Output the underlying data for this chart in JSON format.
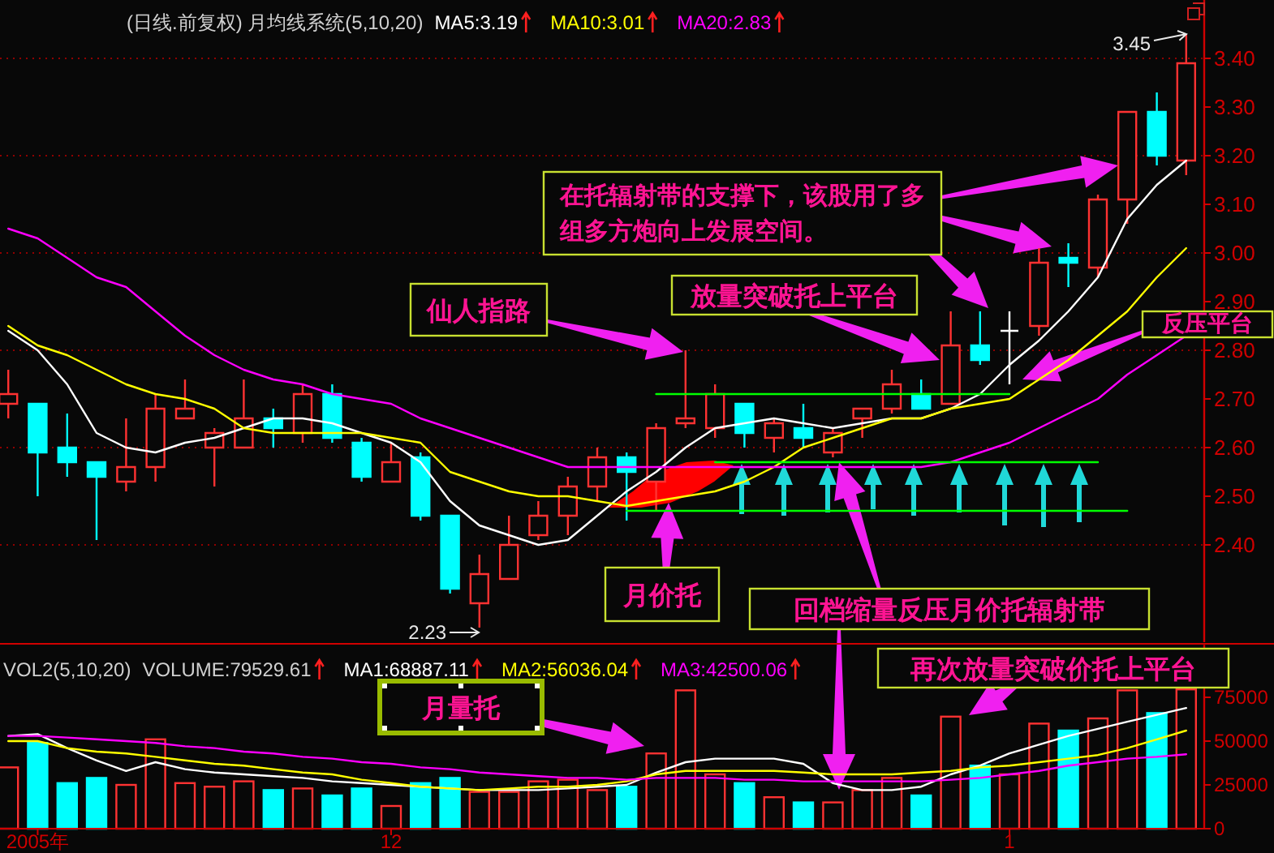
{
  "chart_data": [
    {
      "type": "candlestick",
      "title": "(日线.前复权) 月均线系统(5,10,20)",
      "categories": [
        null,
        null,
        null,
        null,
        null,
        null,
        null,
        null,
        null,
        null,
        null,
        null,
        null,
        null,
        null,
        null,
        null,
        null,
        null,
        null,
        null,
        null,
        null,
        null,
        null,
        null,
        null,
        null,
        null,
        null,
        null,
        null,
        null,
        null,
        null,
        null,
        null,
        null,
        null,
        null,
        null
      ],
      "ohlc": [
        [
          2.69,
          2.76,
          2.66,
          2.71
        ],
        [
          2.69,
          2.69,
          2.5,
          2.59
        ],
        [
          2.6,
          2.67,
          2.54,
          2.57
        ],
        [
          2.57,
          2.57,
          2.41,
          2.54
        ],
        [
          2.53,
          2.66,
          2.51,
          2.56
        ],
        [
          2.56,
          2.71,
          2.53,
          2.68
        ],
        [
          2.66,
          2.74,
          2.66,
          2.68
        ],
        [
          2.6,
          2.64,
          2.52,
          2.63
        ],
        [
          2.6,
          2.74,
          2.6,
          2.66
        ],
        [
          2.66,
          2.68,
          2.6,
          2.64
        ],
        [
          2.63,
          2.73,
          2.61,
          2.71
        ],
        [
          2.71,
          2.73,
          2.61,
          2.62
        ],
        [
          2.61,
          2.62,
          2.53,
          2.54
        ],
        [
          2.53,
          2.61,
          2.53,
          2.57
        ],
        [
          2.58,
          2.59,
          2.45,
          2.46
        ],
        [
          2.46,
          2.46,
          2.3,
          2.31
        ],
        [
          2.28,
          2.38,
          2.23,
          2.34
        ],
        [
          2.33,
          2.46,
          2.33,
          2.4
        ],
        [
          2.42,
          2.49,
          2.41,
          2.46
        ],
        [
          2.46,
          2.54,
          2.42,
          2.52
        ],
        [
          2.52,
          2.6,
          2.49,
          2.58
        ],
        [
          2.58,
          2.59,
          2.45,
          2.55
        ],
        [
          2.53,
          2.65,
          2.47,
          2.64
        ],
        [
          2.65,
          2.8,
          2.64,
          2.66
        ],
        [
          2.64,
          2.73,
          2.62,
          2.71
        ],
        [
          2.69,
          2.69,
          2.6,
          2.63
        ],
        [
          2.62,
          2.66,
          2.59,
          2.65
        ],
        [
          2.64,
          2.69,
          2.6,
          2.62
        ],
        [
          2.59,
          2.64,
          2.58,
          2.63
        ],
        [
          2.66,
          2.68,
          2.62,
          2.68
        ],
        [
          2.68,
          2.76,
          2.67,
          2.73
        ],
        [
          2.71,
          2.74,
          2.68,
          2.68
        ],
        [
          2.69,
          2.88,
          2.69,
          2.81
        ],
        [
          2.81,
          2.88,
          2.77,
          2.78
        ],
        [
          2.84,
          2.88,
          2.73,
          2.84
        ],
        [
          2.85,
          3.01,
          2.83,
          2.98
        ],
        [
          2.99,
          3.02,
          2.93,
          2.98
        ],
        [
          2.97,
          3.12,
          2.95,
          3.11
        ],
        [
          3.11,
          3.29,
          3.06,
          3.29
        ],
        [
          3.29,
          3.33,
          3.18,
          3.2
        ],
        [
          3.19,
          3.45,
          3.16,
          3.39
        ]
      ],
      "colors": [
        "#ff3232",
        "#00ffff",
        "#00ffff",
        "#00ffff",
        "#ff3232",
        "#ff3232",
        "#ff3232",
        "#ff3232",
        "#ff3232",
        "#00ffff",
        "#ff3232",
        "#00ffff",
        "#00ffff",
        "#ff3232",
        "#00ffff",
        "#00ffff",
        "#ff3232",
        "#ff3232",
        "#ff3232",
        "#ff3232",
        "#ff3232",
        "#00ffff",
        "#ff3232",
        "#ff3232",
        "#ff3232",
        "#00ffff",
        "#ff3232",
        "#00ffff",
        "#ff3232",
        "#ff3232",
        "#ff3232",
        "#00ffff",
        "#ff3232",
        "#00ffff",
        "#ffffff",
        "#ff3232",
        "#00ffff",
        "#ff3232",
        "#ff3232",
        "#00ffff",
        "#ff3232"
      ],
      "series": [
        {
          "type": "line",
          "name": "MA5:3.19",
          "color": "#ffffff",
          "values": [
            2.84,
            2.8,
            2.73,
            2.63,
            2.6,
            2.59,
            2.61,
            2.62,
            2.64,
            2.66,
            2.66,
            2.65,
            2.63,
            2.61,
            2.57,
            2.49,
            2.44,
            2.42,
            2.4,
            2.41,
            2.46,
            2.51,
            2.55,
            2.6,
            2.64,
            2.65,
            2.66,
            2.65,
            2.64,
            2.65,
            2.66,
            2.66,
            2.68,
            2.71,
            2.77,
            2.82,
            2.88,
            2.95,
            3.07,
            3.14,
            3.19
          ]
        },
        {
          "type": "line",
          "name": "MA10:3.01",
          "color": "#ffff00",
          "values": [
            2.85,
            2.81,
            2.79,
            2.76,
            2.73,
            2.71,
            2.7,
            2.68,
            2.64,
            2.63,
            2.63,
            2.63,
            2.63,
            2.62,
            2.61,
            2.55,
            2.53,
            2.51,
            2.5,
            2.5,
            2.49,
            2.48,
            2.49,
            2.5,
            2.51,
            2.53,
            2.56,
            2.6,
            2.62,
            2.64,
            2.66,
            2.66,
            2.68,
            2.69,
            2.7,
            2.74,
            2.78,
            2.83,
            2.88,
            2.95,
            3.01
          ]
        },
        {
          "type": "line",
          "name": "MA20:2.83",
          "color": "#ff00ff",
          "values": [
            3.05,
            3.03,
            2.99,
            2.95,
            2.93,
            2.88,
            2.83,
            2.79,
            2.76,
            2.74,
            2.73,
            2.71,
            2.7,
            2.69,
            2.66,
            2.64,
            2.62,
            2.6,
            2.58,
            2.56,
            2.56,
            2.56,
            2.56,
            2.56,
            2.56,
            2.56,
            2.56,
            2.56,
            2.56,
            2.56,
            2.56,
            2.56,
            2.57,
            2.59,
            2.61,
            2.64,
            2.67,
            2.7,
            2.75,
            2.79,
            2.83
          ]
        },
        {
          "type": "line",
          "color": "#00ff00",
          "values": [
            null,
            null,
            null,
            null,
            null,
            null,
            null,
            null,
            null,
            null,
            null,
            null,
            null,
            null,
            null,
            null,
            null,
            null,
            null,
            null,
            null,
            null,
            2.71,
            2.71,
            2.71,
            2.71,
            2.71,
            2.71,
            2.71,
            2.71,
            2.71,
            2.71,
            2.71,
            2.71,
            2.71,
            null,
            null,
            null,
            null,
            null,
            null
          ]
        },
        {
          "type": "line",
          "color": "#00ff00",
          "values": [
            null,
            null,
            null,
            null,
            null,
            null,
            null,
            null,
            null,
            null,
            null,
            null,
            null,
            null,
            null,
            null,
            null,
            null,
            null,
            null,
            null,
            null,
            null,
            null,
            2.57,
            2.57,
            2.57,
            2.57,
            2.57,
            2.57,
            2.57,
            2.57,
            2.57,
            2.57,
            2.57,
            2.57,
            2.57,
            2.57,
            null,
            null,
            null
          ]
        },
        {
          "type": "line",
          "color": "#00ff00",
          "values": [
            null,
            null,
            null,
            null,
            null,
            null,
            null,
            null,
            null,
            null,
            null,
            null,
            null,
            null,
            null,
            null,
            null,
            null,
            null,
            null,
            null,
            2.47,
            2.47,
            2.47,
            2.47,
            2.47,
            2.47,
            2.47,
            2.47,
            2.47,
            2.47,
            2.47,
            2.47,
            2.47,
            2.47,
            2.47,
            2.47,
            2.47,
            2.47,
            null,
            null
          ]
        }
      ],
      "ylim": [
        2.2,
        3.52
      ],
      "yticks": [
        {
          "value": 2.4,
          "label": "2.40"
        },
        {
          "value": 2.5,
          "label": "2.50"
        },
        {
          "value": 2.6,
          "label": "2.60"
        },
        {
          "value": 2.7,
          "label": "2.70"
        },
        {
          "value": 2.8,
          "label": "2.80"
        },
        {
          "value": 2.9,
          "label": "2.90"
        },
        {
          "value": 3.0,
          "label": "3.00"
        },
        {
          "value": 3.1,
          "label": "3.10"
        },
        {
          "value": 3.2,
          "label": "3.20"
        },
        {
          "value": 3.3,
          "label": "3.30"
        },
        {
          "value": 3.4,
          "label": "3.40"
        }
      ],
      "grid": "y",
      "legend": "top left",
      "tick_labels": "y",
      "annotations": [
        "仙人指路",
        "放量突破托上平台",
        "在托辐射带的支撑下，该股用了多组多方炮向上发展空间。",
        "反压平台",
        "月价托",
        "回档缩量反压月价托辐射带",
        "2.23",
        "3.45"
      ]
    },
    {
      "type": "bar",
      "title": "VOL2(5,10,20)",
      "categories": [
        null,
        "2005年",
        null,
        null,
        null,
        null,
        null,
        null,
        null,
        null,
        null,
        null,
        null,
        "12",
        null,
        null,
        null,
        null,
        null,
        null,
        null,
        null,
        null,
        null,
        null,
        null,
        null,
        null,
        null,
        null,
        null,
        null,
        null,
        null,
        "1",
        null,
        null,
        null,
        null,
        null,
        null
      ],
      "series": [
        {
          "name": "VOLUME:79529.61",
          "values": [
            35000,
            49000,
            26000,
            29000,
            25000,
            51000,
            26000,
            24000,
            27000,
            22000,
            23000,
            19000,
            23000,
            13000,
            26000,
            29000,
            21000,
            21000,
            27000,
            28000,
            22000,
            24000,
            43000,
            79000,
            31000,
            26000,
            18000,
            15000,
            15000,
            22000,
            29000,
            19000,
            64000,
            36000,
            31000,
            60000,
            56000,
            63000,
            79000,
            66000,
            79529.61
          ],
          "colors": [
            "#ff3232",
            "#00ffff",
            "#00ffff",
            "#00ffff",
            "#ff3232",
            "#ff3232",
            "#ff3232",
            "#ff3232",
            "#ff3232",
            "#00ffff",
            "#ff3232",
            "#00ffff",
            "#00ffff",
            "#ff3232",
            "#00ffff",
            "#00ffff",
            "#ff3232",
            "#ff3232",
            "#ff3232",
            "#ff3232",
            "#ff3232",
            "#00ffff",
            "#ff3232",
            "#ff3232",
            "#ff3232",
            "#00ffff",
            "#ff3232",
            "#00ffff",
            "#ff3232",
            "#ff3232",
            "#ff3232",
            "#00ffff",
            "#ff3232",
            "#00ffff",
            "#ff3232",
            "#ff3232",
            "#00ffff",
            "#ff3232",
            "#ff3232",
            "#00ffff",
            "#ff3232"
          ]
        },
        {
          "type": "line",
          "name": "MA1:68887.11",
          "color": "#ffffff",
          "values": [
            53000,
            54000,
            46000,
            39000,
            33000,
            38000,
            34000,
            32000,
            31000,
            30000,
            29000,
            27000,
            26000,
            25000,
            24000,
            23000,
            22000,
            22000,
            22000,
            23000,
            24000,
            25000,
            32000,
            38000,
            40000,
            40000,
            40000,
            37000,
            26000,
            22000,
            22000,
            24000,
            31000,
            36000,
            43000,
            48000,
            53000,
            57000,
            61000,
            65000,
            68887.11
          ]
        },
        {
          "type": "line",
          "name": "MA2:56036.04",
          "color": "#ffff00",
          "values": [
            50000,
            50000,
            46000,
            44000,
            43000,
            41000,
            39000,
            37000,
            36000,
            34000,
            32000,
            31000,
            28000,
            26000,
            24000,
            23000,
            22000,
            23000,
            24000,
            24000,
            25000,
            27000,
            31000,
            33000,
            33000,
            33000,
            33000,
            32000,
            31000,
            31000,
            31000,
            32000,
            33000,
            35000,
            36000,
            38000,
            40000,
            42000,
            46000,
            51000,
            56036.04
          ]
        },
        {
          "type": "line",
          "name": "MA3:42500.06",
          "color": "#ff00ff",
          "values": [
            53000,
            53000,
            52000,
            51000,
            50000,
            49000,
            47000,
            46000,
            44000,
            43000,
            41000,
            40000,
            38000,
            37000,
            35000,
            34000,
            32000,
            31000,
            30000,
            29000,
            29000,
            28000,
            29000,
            29000,
            29000,
            28000,
            28000,
            27000,
            27000,
            27000,
            27000,
            27000,
            28000,
            29000,
            31000,
            33000,
            36000,
            38000,
            40000,
            41000,
            42500.06
          ]
        }
      ],
      "ylim": [
        0,
        105000
      ],
      "yticks": [
        0,
        25000,
        50000,
        75000
      ],
      "legend": "top left",
      "annotations": [
        "月量托",
        "再次放量突破价托上平台"
      ]
    }
  ]
}
